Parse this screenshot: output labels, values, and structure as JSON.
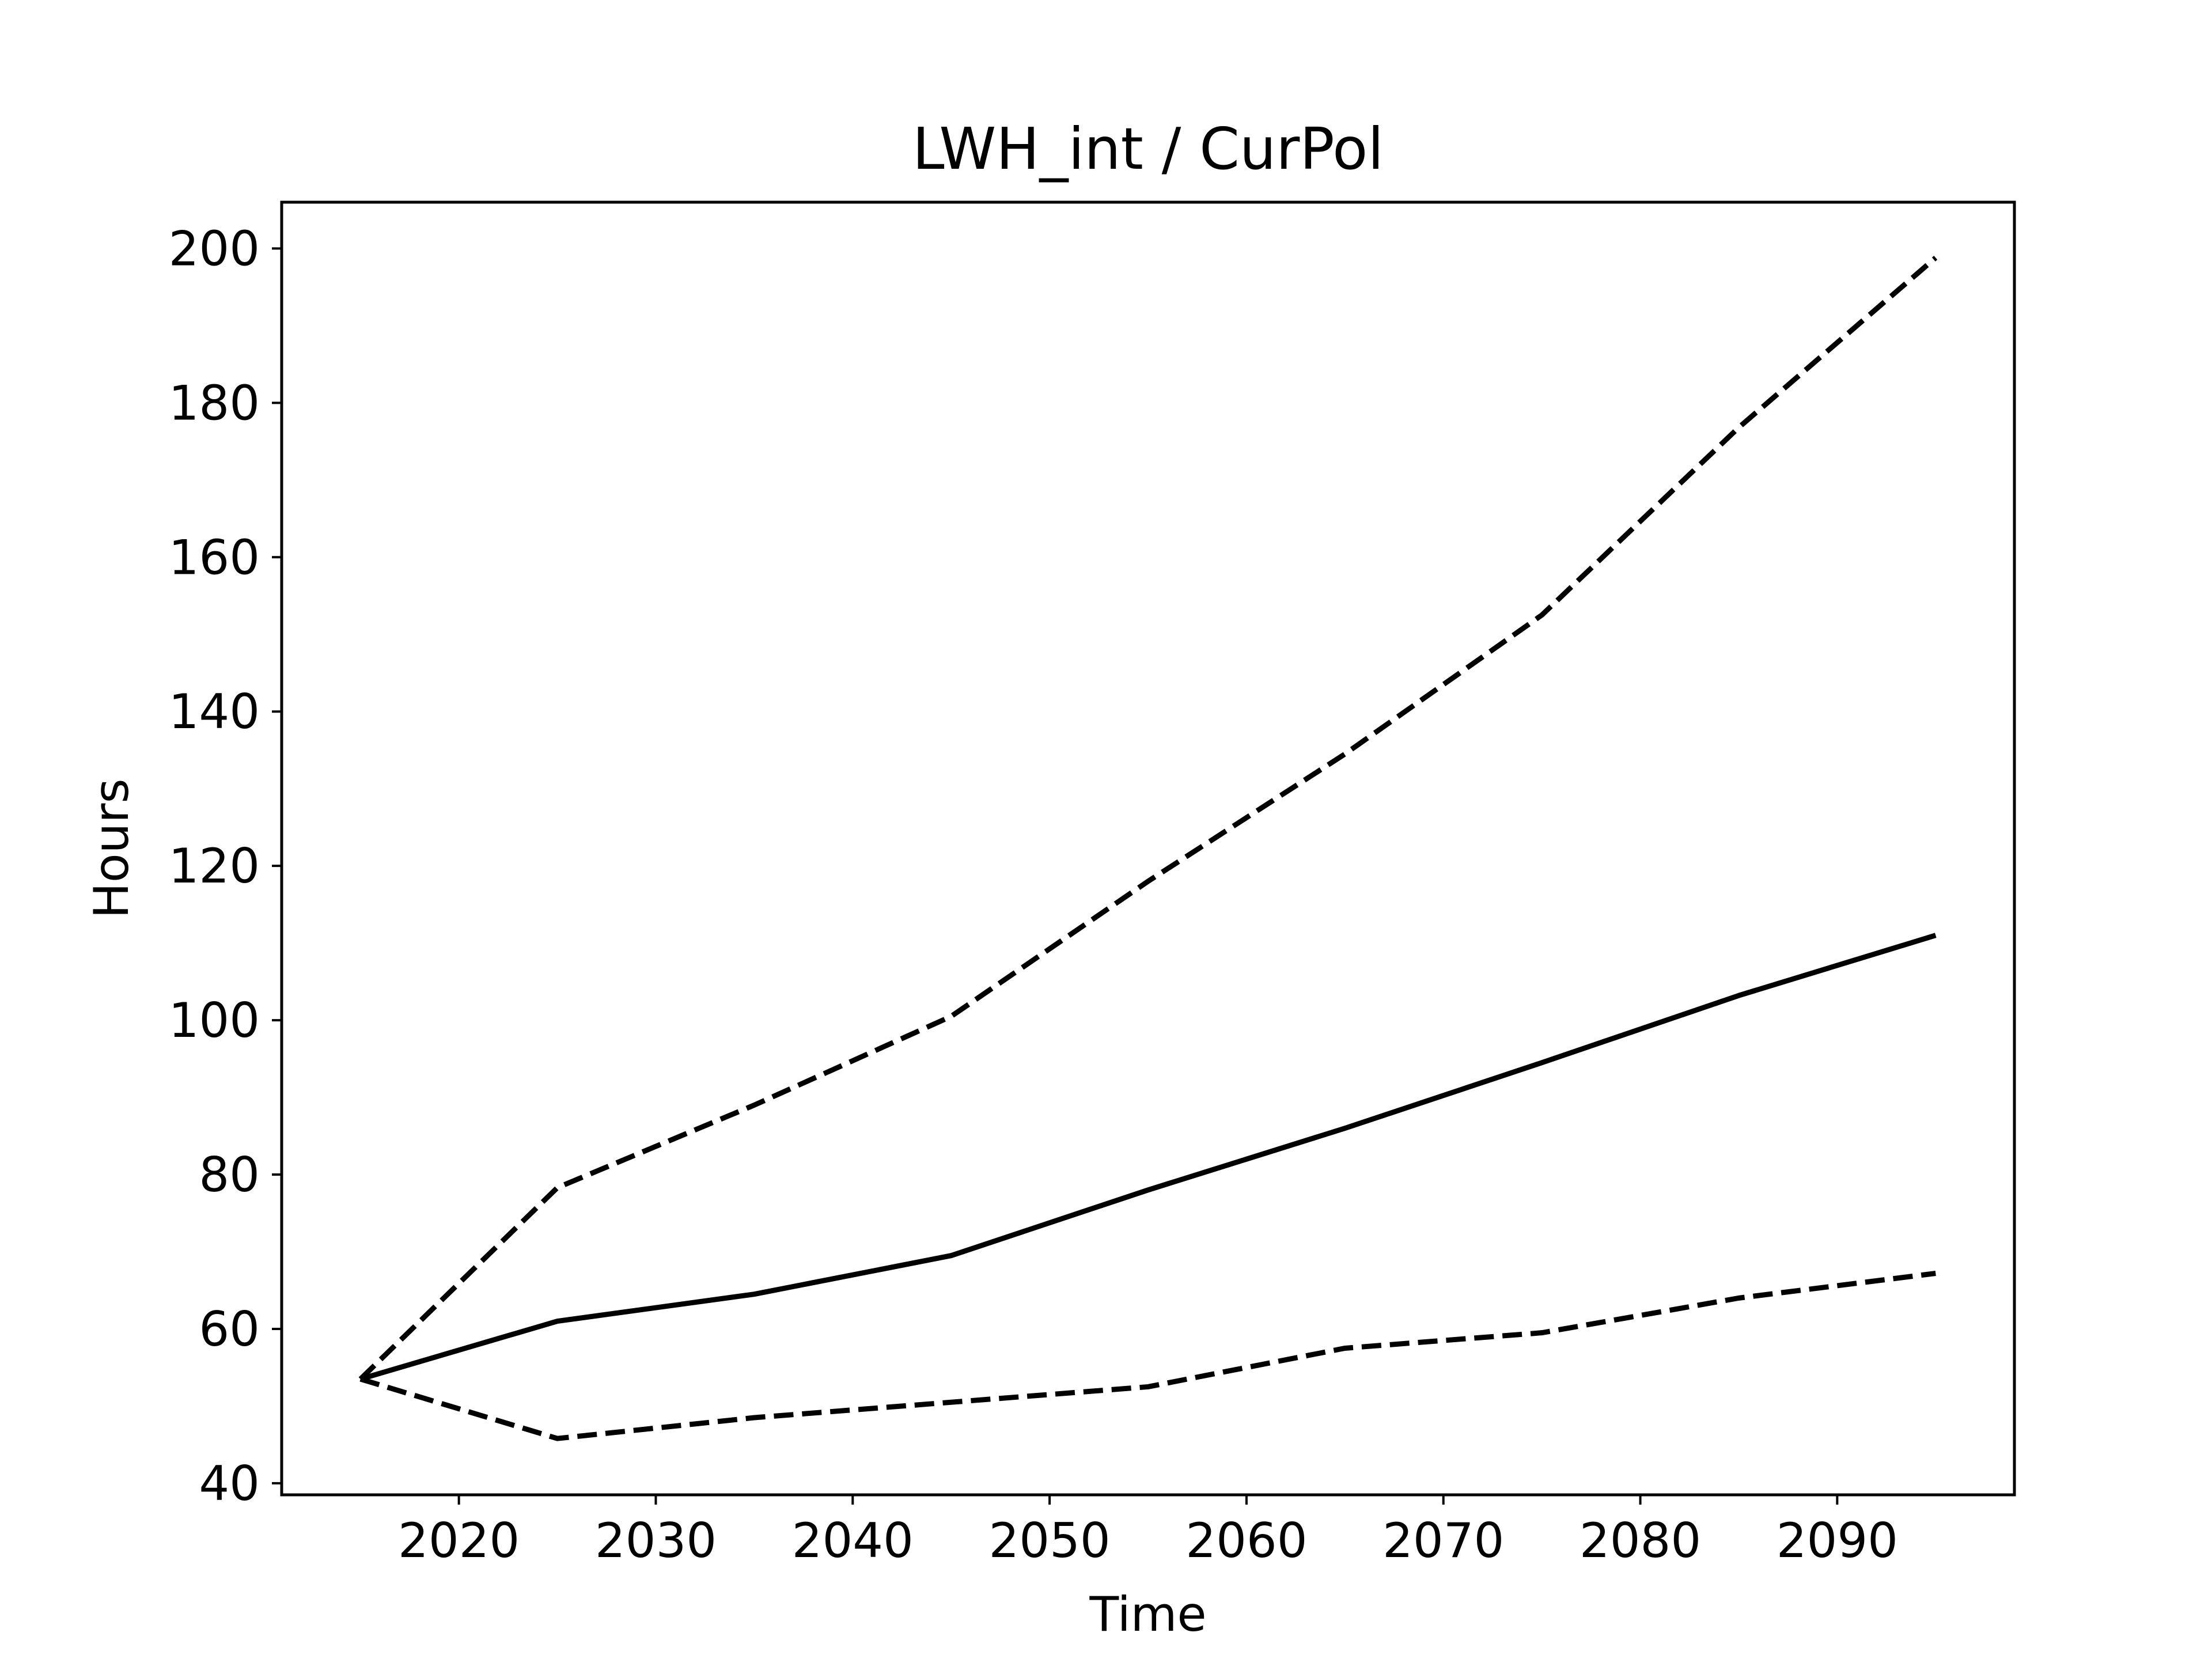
{
  "chart_data": {
    "type": "line",
    "title": "LWH_int / CurPol",
    "xlabel": "Time",
    "ylabel": "Hours",
    "xlim": [
      2011,
      2099
    ],
    "ylim": [
      38.5,
      206
    ],
    "x_ticks": [
      2020,
      2030,
      2040,
      2050,
      2060,
      2070,
      2080,
      2090
    ],
    "y_ticks": [
      40,
      60,
      80,
      100,
      120,
      140,
      160,
      180,
      200
    ],
    "grid": false,
    "legend": "none",
    "x": [
      2015,
      2025,
      2035,
      2045,
      2055,
      2065,
      2075,
      2085,
      2095
    ],
    "series": [
      {
        "style": "solid",
        "color": "#000000",
        "values": [
          53.5,
          61,
          64.5,
          69.5,
          78,
          86,
          94.5,
          103.2,
          111
        ]
      },
      {
        "style": "dashed",
        "color": "#000000",
        "values": [
          53.5,
          78.3,
          89,
          100.5,
          118,
          134.5,
          152.5,
          176.8,
          198.8
        ]
      },
      {
        "style": "dashed",
        "color": "#000000",
        "values": [
          53.5,
          45.8,
          48.5,
          50.5,
          52.5,
          57.5,
          59.5,
          64,
          67.2
        ]
      }
    ]
  }
}
